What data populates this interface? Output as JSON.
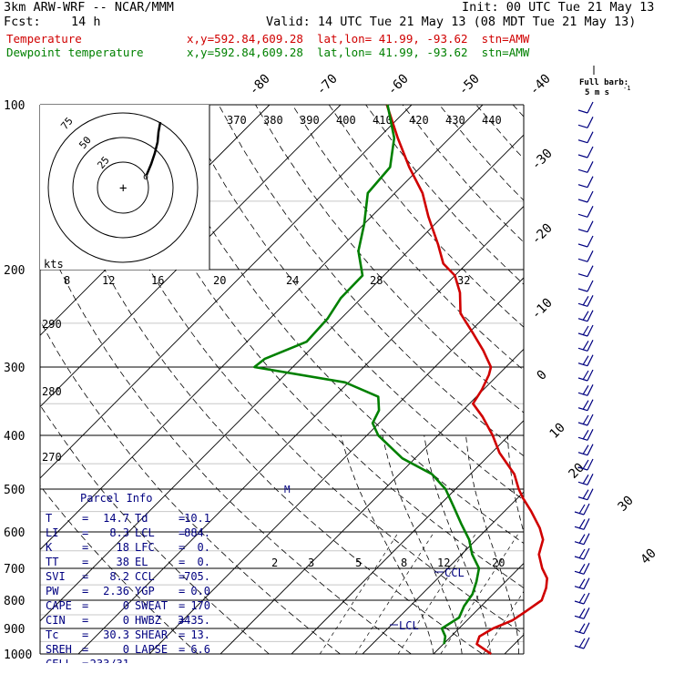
{
  "header": {
    "model": "3km ARW-WRF -- NCAR/MMM",
    "init": "Init: 00 UTC Tue 21 May 13",
    "fcst_label": "Fcst:",
    "fcst_value": "14 h",
    "valid": "Valid: 14 UTC Tue 21 May 13 (08 MDT Tue 21 May 13)"
  },
  "legend": {
    "temperature": {
      "label": "Temperature",
      "info": "x,y=592.84,609.28  lat,lon= 41.99, -93.62  stn=AMW",
      "color": "#d00000"
    },
    "dewpoint": {
      "label": "Dewpoint temperature",
      "info": "x,y=592.84,609.28  lat,lon= 41.99, -93.62  stn=AMW",
      "color": "#008000"
    }
  },
  "barb_key": {
    "title": "Full barb:",
    "value": "5 m s",
    "exp": "-1"
  },
  "hodograph": {
    "units_label": "kts",
    "ring_labels": [
      "25",
      "50",
      "75"
    ]
  },
  "parcel_info": {
    "title": "Parcel Info",
    "rows": [
      {
        "l1": "T",
        "v1": "14.7",
        "l2": "Td",
        "v2": "10.1"
      },
      {
        "l1": "LI",
        "v1": "8.3",
        "l2": "LCL",
        "v2": "884."
      },
      {
        "l1": "K",
        "v1": "18",
        "l2": "LFC",
        "v2": "0."
      },
      {
        "l1": "TT",
        "v1": "38",
        "l2": "EL",
        "v2": "0."
      },
      {
        "l1": "SVI",
        "v1": "8.2",
        "l2": "CCL",
        "v2": "705."
      },
      {
        "l1": "PW",
        "v1": "2.36",
        "l2": "YGP",
        "v2": "0.0"
      },
      {
        "l1": "CAPE",
        "v1": "0",
        "l2": "SWEAT",
        "v2": "170"
      },
      {
        "l1": "CIN",
        "v1": "0",
        "l2": "HWBZ",
        "v2": "3435."
      },
      {
        "l1": "Tc",
        "v1": "30.3",
        "l2": "SHEAR",
        "v2": "13."
      },
      {
        "l1": "SREH",
        "v1": "0",
        "l2": "LAPSE",
        "v2": "6.6"
      }
    ],
    "cell_label": "CELL",
    "cell_value": "233/31"
  },
  "chart_data": {
    "type": "line",
    "title": "",
    "xlabel": "",
    "ylabel": "",
    "y_scale": "log pressure",
    "ylim": [
      1000,
      100
    ],
    "pressure_ticks": [
      "100",
      "200",
      "300",
      "400",
      "500",
      "600",
      "700",
      "800",
      "900",
      "1000"
    ],
    "isotherm_labels": [
      "-80",
      "-70",
      "-60",
      "-50",
      "-40",
      "-30",
      "-20",
      "-10",
      "0",
      "10",
      "20",
      "30",
      "40"
    ],
    "theta_labels": [
      "370",
      "380",
      "390",
      "400",
      "410",
      "420",
      "430",
      "440"
    ],
    "theta_e_labels": [
      "290",
      "280",
      "270"
    ],
    "mixing_ratio_labels": [
      "2",
      "3",
      "5",
      "8",
      "12",
      "20"
    ],
    "upper_scale_labels": [
      "8",
      "12",
      "16",
      "20",
      "24",
      "28",
      "32"
    ],
    "annotations": [
      "CCL",
      "LCL",
      "M"
    ],
    "series": [
      {
        "name": "Temperature",
        "color": "#d00000",
        "points": [
          [
            1000,
            18.1
          ],
          [
            960,
            14.7
          ],
          [
            930,
            14.0
          ],
          [
            900,
            14.8
          ],
          [
            870,
            16.4
          ],
          [
            840,
            17.0
          ],
          [
            800,
            17.7
          ],
          [
            760,
            16.6
          ],
          [
            730,
            15.4
          ],
          [
            700,
            13.3
          ],
          [
            660,
            10.9
          ],
          [
            620,
            9.4
          ],
          [
            590,
            7.3
          ],
          [
            550,
            3.8
          ],
          [
            520,
            0.8
          ],
          [
            500,
            -1.1
          ],
          [
            470,
            -3.8
          ],
          [
            430,
            -8.9
          ],
          [
            400,
            -12.3
          ],
          [
            370,
            -16.3
          ],
          [
            350,
            -19.5
          ],
          [
            330,
            -20.2
          ],
          [
            310,
            -21.3
          ],
          [
            300,
            -22.1
          ],
          [
            280,
            -25.5
          ],
          [
            260,
            -29.5
          ],
          [
            240,
            -33.9
          ],
          [
            220,
            -36.9
          ],
          [
            205,
            -40.0
          ],
          [
            195,
            -43.3
          ],
          [
            180,
            -46.7
          ],
          [
            160,
            -52.0
          ],
          [
            145,
            -56.1
          ],
          [
            130,
            -61.6
          ],
          [
            115,
            -67.3
          ],
          [
            100,
            -73.5
          ]
        ]
      },
      {
        "name": "Dewpoint temperature",
        "color": "#008000",
        "points": [
          [
            960,
            10.1
          ],
          [
            930,
            9.2
          ],
          [
            900,
            7.6
          ],
          [
            860,
            8.5
          ],
          [
            820,
            7.6
          ],
          [
            780,
            7.1
          ],
          [
            740,
            5.9
          ],
          [
            700,
            4.4
          ],
          [
            660,
            1.5
          ],
          [
            620,
            -1.0
          ],
          [
            580,
            -4.3
          ],
          [
            540,
            -7.7
          ],
          [
            500,
            -11.4
          ],
          [
            470,
            -15.4
          ],
          [
            440,
            -21.8
          ],
          [
            400,
            -28.4
          ],
          [
            380,
            -30.9
          ],
          [
            360,
            -31.8
          ],
          [
            340,
            -33.8
          ],
          [
            320,
            -40.5
          ],
          [
            300,
            -55.4
          ],
          [
            290,
            -55.1
          ],
          [
            270,
            -51.6
          ],
          [
            245,
            -51.9
          ],
          [
            225,
            -52.9
          ],
          [
            205,
            -53.0
          ],
          [
            185,
            -57.0
          ],
          [
            165,
            -60.0
          ],
          [
            145,
            -63.8
          ],
          [
            130,
            -64.3
          ],
          [
            115,
            -67.8
          ],
          [
            100,
            -73.4
          ]
        ]
      }
    ],
    "wind_barbs_count": 37
  }
}
